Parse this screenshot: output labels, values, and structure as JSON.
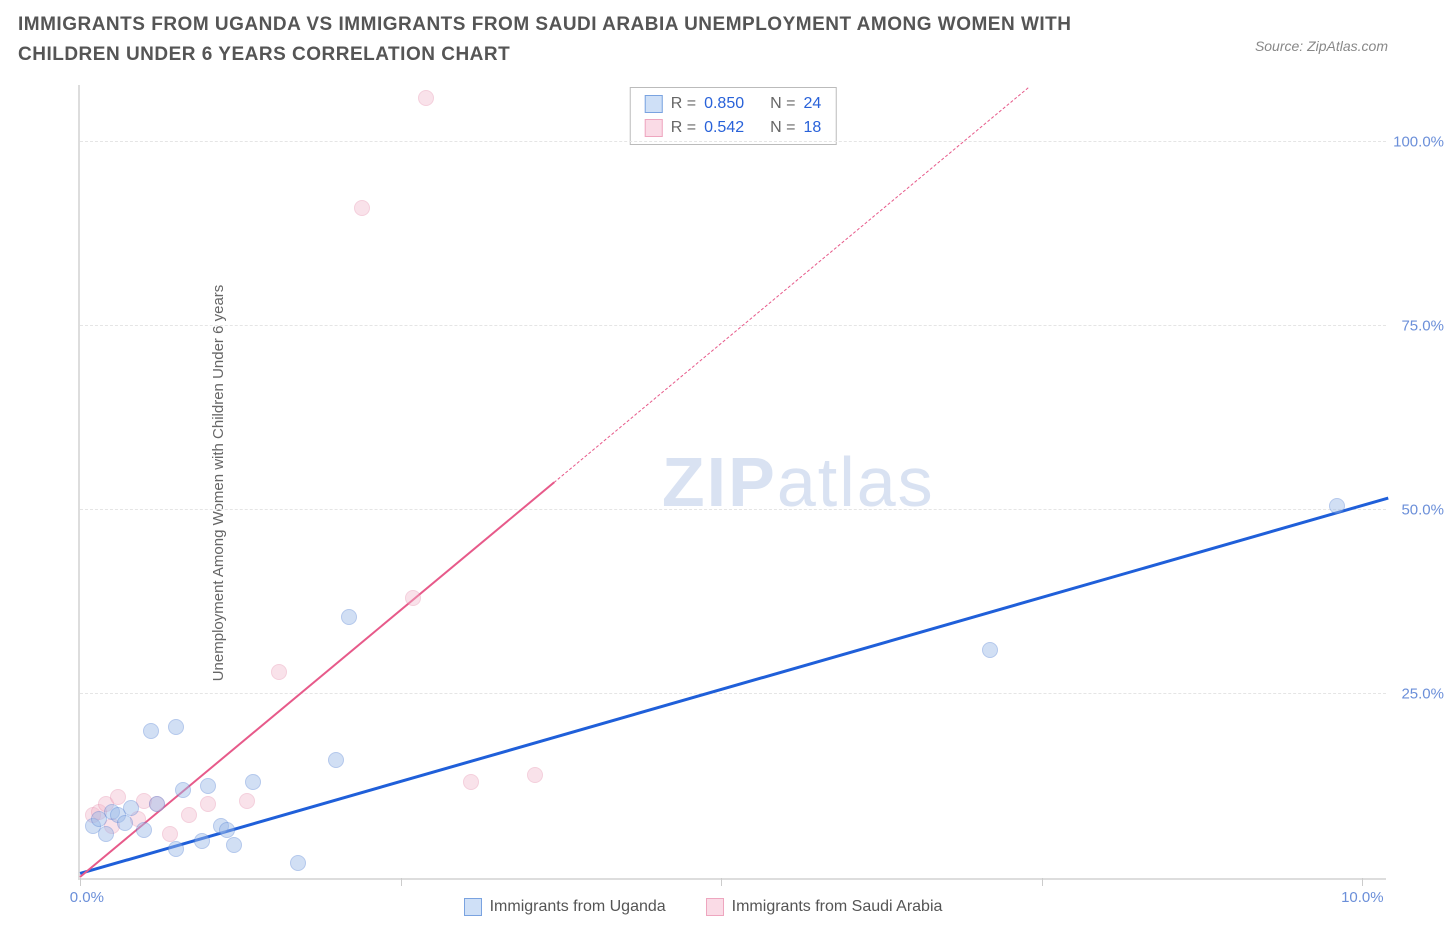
{
  "header": {
    "title": "IMMIGRANTS FROM UGANDA VS IMMIGRANTS FROM SAUDI ARABIA UNEMPLOYMENT AMONG WOMEN WITH CHILDREN UNDER 6 YEARS CORRELATION CHART",
    "source": "Source: ZipAtlas.com"
  },
  "y_axis": {
    "label": "Unemployment Among Women with Children Under 6 years",
    "ticks": [
      {
        "value": 25.0,
        "label": "25.0%"
      },
      {
        "value": 50.0,
        "label": "50.0%"
      },
      {
        "value": 75.0,
        "label": "75.0%"
      },
      {
        "value": 100.0,
        "label": "100.0%"
      }
    ],
    "min": 0,
    "max": 108
  },
  "x_axis": {
    "min": 0,
    "max": 10.2,
    "ticks": [
      0.0,
      2.5,
      5.0,
      7.5,
      10.0
    ],
    "labels": [
      {
        "value": 0.0,
        "label": "0.0%"
      },
      {
        "value": 10.0,
        "label": "10.0%"
      }
    ]
  },
  "series": {
    "uganda": {
      "label": "Immigrants from Uganda",
      "fill": "#9bb9e8",
      "fill_opacity": 0.45,
      "stroke": "#5a87d6",
      "swatch_fill": "#cfe0f7",
      "swatch_border": "#7aa3e0",
      "radius": 8,
      "points": [
        [
          0.1,
          7.0
        ],
        [
          0.15,
          8.0
        ],
        [
          0.2,
          6.0
        ],
        [
          0.25,
          9.0
        ],
        [
          0.3,
          8.5
        ],
        [
          0.35,
          7.5
        ],
        [
          0.5,
          6.5
        ],
        [
          0.55,
          20.0
        ],
        [
          0.75,
          20.5
        ],
        [
          0.75,
          4.0
        ],
        [
          0.8,
          12.0
        ],
        [
          0.95,
          5.0
        ],
        [
          1.0,
          12.5
        ],
        [
          1.1,
          7.0
        ],
        [
          1.15,
          6.5
        ],
        [
          1.2,
          4.5
        ],
        [
          1.35,
          13.0
        ],
        [
          1.7,
          2.0
        ],
        [
          2.0,
          16.0
        ],
        [
          2.1,
          35.5
        ],
        [
          7.1,
          31.0
        ],
        [
          9.8,
          50.5
        ],
        [
          0.4,
          9.5
        ],
        [
          0.6,
          10.0
        ]
      ],
      "trend": {
        "slope": 5.0,
        "intercept": 0.5,
        "color": "#1f5fd9",
        "width": 2.5
      }
    },
    "saudi": {
      "label": "Immigrants from Saudi Arabia",
      "fill": "#f2b8cb",
      "fill_opacity": 0.4,
      "stroke": "#e489a9",
      "swatch_fill": "#fadbe6",
      "swatch_border": "#eea6bf",
      "radius": 8,
      "points": [
        [
          0.1,
          8.5
        ],
        [
          0.15,
          9.0
        ],
        [
          0.2,
          10.0
        ],
        [
          0.25,
          7.0
        ],
        [
          0.3,
          11.0
        ],
        [
          0.45,
          8.0
        ],
        [
          0.5,
          10.5
        ],
        [
          0.6,
          10.0
        ],
        [
          0.7,
          6.0
        ],
        [
          0.85,
          8.5
        ],
        [
          1.0,
          10.0
        ],
        [
          1.3,
          10.5
        ],
        [
          1.55,
          28.0
        ],
        [
          2.2,
          91.0
        ],
        [
          2.6,
          38.0
        ],
        [
          2.7,
          106.0
        ],
        [
          3.05,
          13.0
        ],
        [
          3.55,
          14.0
        ]
      ],
      "trend": {
        "slope": 14.5,
        "intercept": 0.0,
        "color": "#e75a8a",
        "width": 2,
        "x_solid_end": 3.7,
        "x_dash_end": 7.4
      }
    }
  },
  "stats_box": {
    "rows": [
      {
        "swatch_fill": "#cfe0f7",
        "swatch_border": "#7aa3e0",
        "r": "0.850",
        "n": "24"
      },
      {
        "swatch_fill": "#fadbe6",
        "swatch_border": "#eea6bf",
        "r": "0.542",
        "n": "18"
      }
    ],
    "r_label": "R =",
    "n_label": "N ="
  },
  "watermark": {
    "part1": "ZIP",
    "part2": "atlas"
  },
  "colors": {
    "background": "#ffffff",
    "grid": "#e5e5e5",
    "axis": "#dddddd",
    "title_text": "#555555",
    "source_text": "#888888",
    "tick_text": "#6b8fd9"
  }
}
